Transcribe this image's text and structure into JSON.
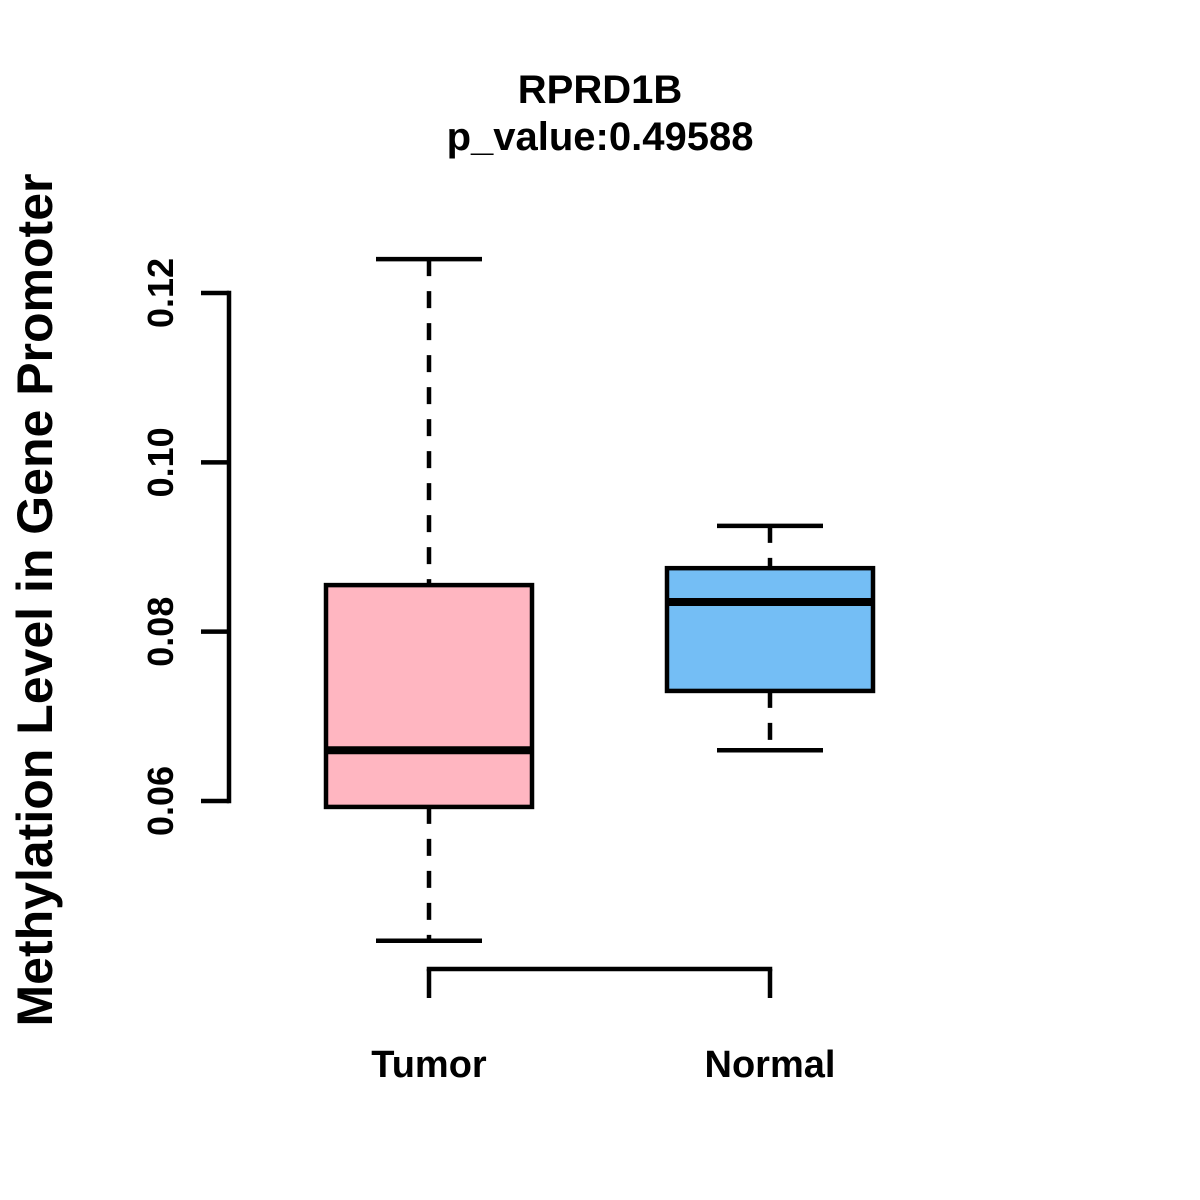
{
  "chart_data": {
    "type": "boxplot",
    "title": "RPRD1B",
    "subtitle": "p_value:0.49588",
    "ylabel": "Methylation Level in Gene Promoter",
    "xlabel": "",
    "categories": [
      "Tumor",
      "Normal"
    ],
    "yticks": [
      0.06,
      0.08,
      0.1,
      0.12
    ],
    "ytick_labels": [
      "0.06",
      "0.08",
      "0.10",
      "0.12"
    ],
    "ylim": [
      0.06,
      0.12
    ],
    "grid": false,
    "legend": "none",
    "line_color": "#000000",
    "background_color": "#ffffff",
    "series": [
      {
        "name": "Tumor",
        "fill_color": "#FFB6C1",
        "whisker_low": 0.0435,
        "q1": 0.0593,
        "median": 0.066,
        "q3": 0.0855,
        "whisker_high": 0.124
      },
      {
        "name": "Normal",
        "fill_color": "#74BEF5",
        "whisker_low": 0.066,
        "q1": 0.073,
        "median": 0.0835,
        "q3": 0.0875,
        "whisker_high": 0.0925
      }
    ]
  }
}
